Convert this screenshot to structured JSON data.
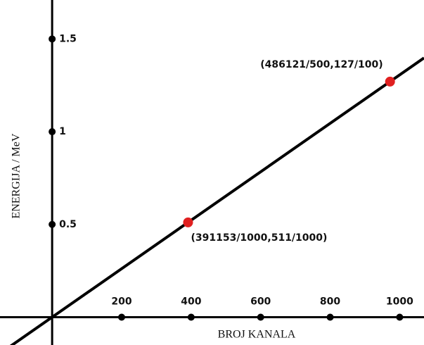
{
  "chart_data": {
    "type": "line",
    "x_label": "BROJ KANALA",
    "y_label": "ENERGIJA / MeV",
    "xlim": [
      -150,
      1070
    ],
    "ylim": [
      -0.15,
      1.71
    ],
    "xticks": [
      200,
      400,
      600,
      800,
      1000
    ],
    "yticks": [
      0.5,
      1,
      1.5
    ],
    "line_color": "#000000",
    "series": [
      {
        "color": "#e02020",
        "x": [
          391.153,
          972.242
        ],
        "values": [
          0.511,
          1.27
        ],
        "value_labels": [
          "(391153/1000,511/1000)",
          "(486121/500,127/100)"
        ]
      }
    ]
  }
}
